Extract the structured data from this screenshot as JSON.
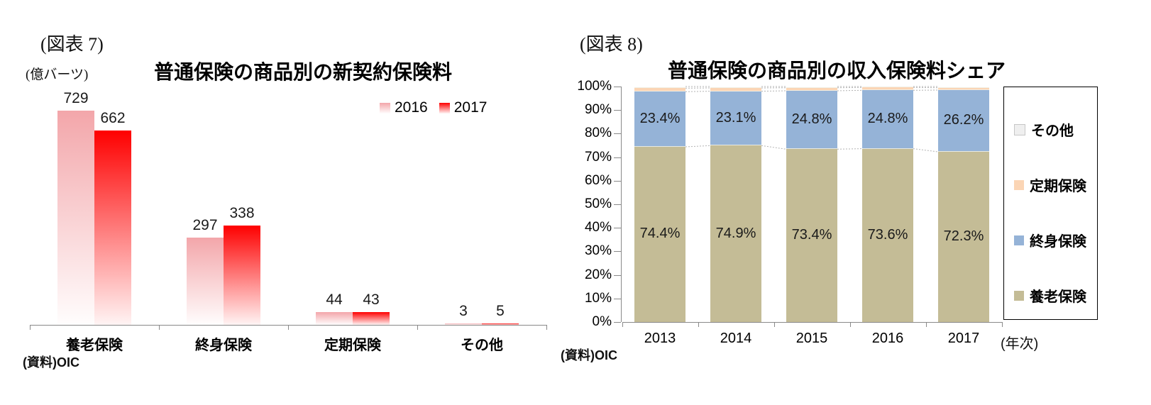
{
  "colors": {
    "axis": "#898989",
    "connector_line": "#B3B3B3",
    "legend_box_border": "#000000"
  },
  "chart_data": [
    {
      "id": "fig7",
      "type": "bar",
      "figure_label": "(図表 7)",
      "unit_label": "(億バーツ)",
      "title": "普通保険の商品別の新契約保険料",
      "source": "(資料)OIC",
      "categories": [
        "養老保険",
        "終身保険",
        "定期保険",
        "その他"
      ],
      "series": [
        {
          "name": "2016",
          "key": "y2016",
          "values": [
            729,
            297,
            44,
            3
          ],
          "color_top": "#F3A6AA",
          "color_bottom": "#FFFDFD"
        },
        {
          "name": "2017",
          "key": "y2017",
          "values": [
            662,
            338,
            43,
            5
          ],
          "color_top": "#FE0000",
          "color_bottom": "#FFF4F4"
        }
      ],
      "value_labels_shown": true,
      "grid": false,
      "legend_position": "top-right"
    },
    {
      "id": "fig8",
      "type": "stacked-bar-100pct",
      "figure_label": "(図表 8)",
      "title": "普通保険の商品別の収入保険料シェア",
      "source": "(資料)OIC",
      "xlabel": "(年次)",
      "categories": [
        "2013",
        "2014",
        "2015",
        "2016",
        "2017"
      ],
      "series": [
        {
          "name": "養老保険",
          "key": "endowment",
          "color": "#C4BC96",
          "legend_color": "#C4BC96",
          "values": [
            74.4,
            74.9,
            73.4,
            73.6,
            72.3
          ],
          "labels_shown": true
        },
        {
          "name": "終身保険",
          "key": "whole-life",
          "color": "#95B3D7",
          "legend_color": "#95B3D7",
          "values": [
            23.4,
            23.1,
            24.8,
            24.8,
            26.2
          ],
          "labels_shown": true
        },
        {
          "name": "定期保険",
          "key": "term",
          "color": "#FBD5B5",
          "legend_color": "#FBD5B5",
          "values": [
            1.5,
            1.4,
            1.3,
            1.2,
            1.0
          ],
          "labels_shown": false,
          "estimated": true
        },
        {
          "name": "その他",
          "key": "other",
          "color": "#FFFFFF",
          "legend_color": "#EFEFEF",
          "values": [
            0.7,
            0.6,
            0.5,
            0.4,
            0.5
          ],
          "labels_shown": false,
          "estimated": true
        }
      ],
      "yticks": [
        "0%",
        "10%",
        "20%",
        "30%",
        "40%",
        "50%",
        "60%",
        "70%",
        "80%",
        "90%",
        "100%"
      ],
      "ylim": [
        0,
        100
      ],
      "legend_order_top_to_bottom": [
        "その他",
        "定期保険",
        "終身保険",
        "養老保険"
      ],
      "legend_position": "right",
      "grid": false
    }
  ]
}
